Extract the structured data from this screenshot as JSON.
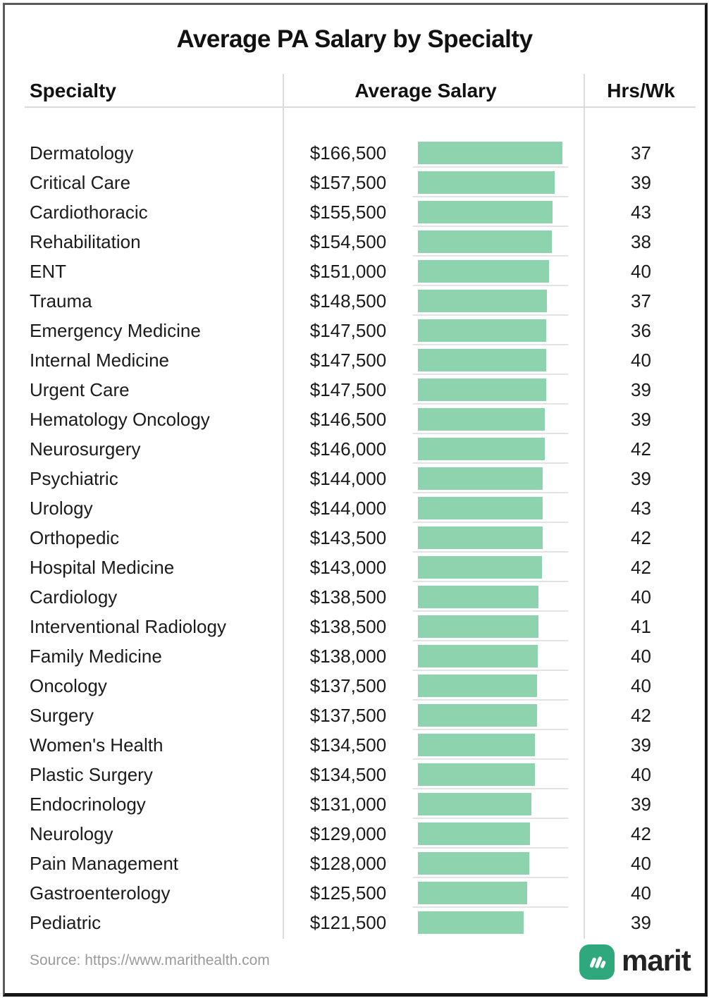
{
  "title": "Average PA Salary by Specialty",
  "table": {
    "headers": [
      "Specialty",
      "Average Salary",
      "Hrs/Wk"
    ]
  },
  "footer": {
    "source": "Source: https://www.marithealth.com",
    "brand": "marit"
  },
  "colors": {
    "bar": "#8DD3AE",
    "logo_green": "#2FA87D",
    "divider": "#DCDCDC",
    "track_line": "#E3E3E3",
    "text": "#191919",
    "source_text": "#9A9A9A"
  },
  "icons": {
    "logo": "marit-logo-icon"
  },
  "chart_data": {
    "type": "bar",
    "orientation": "horizontal",
    "title": "Average PA Salary by Specialty",
    "columns": [
      "Specialty",
      "Average Salary",
      "Hrs/Wk"
    ],
    "xlabel": "Average Salary (USD)",
    "value_range": [
      0,
      166500
    ],
    "max_value": 166500,
    "bar_color": "#8DD3AE",
    "grid": false,
    "legend": "none",
    "rows": [
      {
        "specialty": "Dermatology",
        "salary": 166500,
        "salary_label": "$166,500",
        "hours": 37
      },
      {
        "specialty": "Critical Care",
        "salary": 157500,
        "salary_label": "$157,500",
        "hours": 39
      },
      {
        "specialty": "Cardiothoracic",
        "salary": 155500,
        "salary_label": "$155,500",
        "hours": 43
      },
      {
        "specialty": "Rehabilitation",
        "salary": 154500,
        "salary_label": "$154,500",
        "hours": 38
      },
      {
        "specialty": "ENT",
        "salary": 151000,
        "salary_label": "$151,000",
        "hours": 40
      },
      {
        "specialty": "Trauma",
        "salary": 148500,
        "salary_label": "$148,500",
        "hours": 37
      },
      {
        "specialty": "Emergency Medicine",
        "salary": 147500,
        "salary_label": "$147,500",
        "hours": 36
      },
      {
        "specialty": "Internal Medicine",
        "salary": 147500,
        "salary_label": "$147,500",
        "hours": 40
      },
      {
        "specialty": "Urgent Care",
        "salary": 147500,
        "salary_label": "$147,500",
        "hours": 39
      },
      {
        "specialty": "Hematology Oncology",
        "salary": 146500,
        "salary_label": "$146,500",
        "hours": 39
      },
      {
        "specialty": "Neurosurgery",
        "salary": 146000,
        "salary_label": "$146,000",
        "hours": 42
      },
      {
        "specialty": "Psychiatric",
        "salary": 144000,
        "salary_label": "$144,000",
        "hours": 39
      },
      {
        "specialty": "Urology",
        "salary": 144000,
        "salary_label": "$144,000",
        "hours": 43
      },
      {
        "specialty": "Orthopedic",
        "salary": 143500,
        "salary_label": "$143,500",
        "hours": 42
      },
      {
        "specialty": "Hospital Medicine",
        "salary": 143000,
        "salary_label": "$143,000",
        "hours": 42
      },
      {
        "specialty": "Cardiology",
        "salary": 138500,
        "salary_label": "$138,500",
        "hours": 40
      },
      {
        "specialty": "Interventional Radiology",
        "salary": 138500,
        "salary_label": "$138,500",
        "hours": 41
      },
      {
        "specialty": "Family Medicine",
        "salary": 138000,
        "salary_label": "$138,000",
        "hours": 40
      },
      {
        "specialty": "Oncology",
        "salary": 137500,
        "salary_label": "$137,500",
        "hours": 40
      },
      {
        "specialty": "Surgery",
        "salary": 137500,
        "salary_label": "$137,500",
        "hours": 42
      },
      {
        "specialty": "Women's Health",
        "salary": 134500,
        "salary_label": "$134,500",
        "hours": 39
      },
      {
        "specialty": "Plastic Surgery",
        "salary": 134500,
        "salary_label": "$134,500",
        "hours": 40
      },
      {
        "specialty": "Endocrinology",
        "salary": 131000,
        "salary_label": "$131,000",
        "hours": 39
      },
      {
        "specialty": "Neurology",
        "salary": 129000,
        "salary_label": "$129,000",
        "hours": 42
      },
      {
        "specialty": "Pain Management",
        "salary": 128000,
        "salary_label": "$128,000",
        "hours": 40
      },
      {
        "specialty": "Gastroenterology",
        "salary": 125500,
        "salary_label": "$125,500",
        "hours": 40
      },
      {
        "specialty": "Pediatric",
        "salary": 121500,
        "salary_label": "$121,500",
        "hours": 39
      }
    ]
  }
}
